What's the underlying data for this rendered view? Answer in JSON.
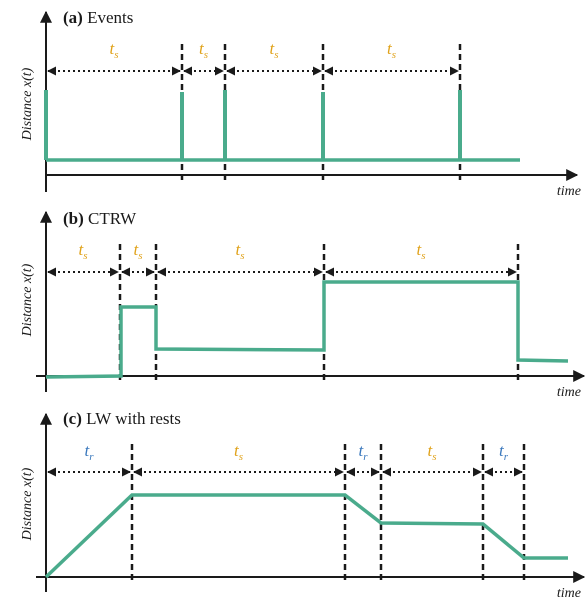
{
  "colors": {
    "trace": "#4aab8c",
    "rest_label": "#3a78bd",
    "step_label": "#e0a21a",
    "ink": "#1a1a1a"
  },
  "panels": [
    {
      "id": "events",
      "letter": "(a)",
      "title": "Events",
      "ylabel": "Distance x(t)",
      "xlabel": "time",
      "spans": [
        {
          "kind": "s",
          "main": "t",
          "sub": "s"
        },
        {
          "kind": "s",
          "main": "t",
          "sub": "s"
        },
        {
          "kind": "s",
          "main": "t",
          "sub": "s"
        },
        {
          "kind": "s",
          "main": "t",
          "sub": "s"
        }
      ]
    },
    {
      "id": "ctrw",
      "letter": "(b)",
      "title": "CTRW",
      "ylabel": "Distance x(t)",
      "xlabel": "time",
      "spans": [
        {
          "kind": "s",
          "main": "t",
          "sub": "s"
        },
        {
          "kind": "s",
          "main": "t",
          "sub": "s"
        },
        {
          "kind": "s",
          "main": "t",
          "sub": "s"
        },
        {
          "kind": "s",
          "main": "t",
          "sub": "s"
        }
      ]
    },
    {
      "id": "lw",
      "letter": "(c)",
      "title": "LW with rests",
      "ylabel": "Distance x(t)",
      "xlabel": "time",
      "spans": [
        {
          "kind": "r",
          "main": "t",
          "sub": "r"
        },
        {
          "kind": "s",
          "main": "t",
          "sub": "s"
        },
        {
          "kind": "r",
          "main": "t",
          "sub": "r"
        },
        {
          "kind": "s",
          "main": "t",
          "sub": "s"
        },
        {
          "kind": "r",
          "main": "t",
          "sub": "r"
        }
      ]
    }
  ]
}
